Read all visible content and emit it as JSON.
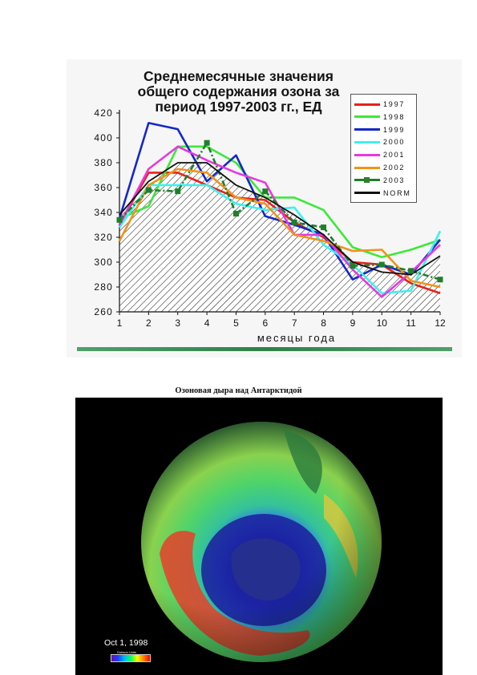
{
  "chart_data": {
    "type": "line",
    "title": "Среднемесячные значения\nобщего содержания озона за\nпериод 1997-2003 гг., ЕД",
    "xlabel": "месяцы года",
    "ylabel": "",
    "x": [
      1,
      2,
      3,
      4,
      5,
      6,
      7,
      8,
      9,
      10,
      11,
      12
    ],
    "x_ticks": [
      "1",
      "2",
      "3",
      "4",
      "5",
      "6",
      "7",
      "8",
      "9",
      "10",
      "11",
      "12"
    ],
    "y_ticks": [
      "260",
      "280",
      "300",
      "320",
      "340",
      "360",
      "380",
      "400",
      "420"
    ],
    "ylim": [
      260,
      420
    ],
    "xlim": [
      1,
      12
    ],
    "legend_position": "top-right",
    "area": {
      "series": "NORM",
      "fill": "hatched"
    },
    "series": [
      {
        "name": "1997",
        "color": "#e8211b",
        "values": [
          330,
          372,
          372,
          362,
          352,
          350,
          332,
          320,
          300,
          298,
          283,
          275
        ]
      },
      {
        "name": "1998",
        "color": "#3ee83a",
        "values": [
          335,
          345,
          393,
          393,
          380,
          352,
          352,
          342,
          312,
          304,
          310,
          318
        ]
      },
      {
        "name": "1999",
        "color": "#1428c8",
        "values": [
          335,
          412,
          407,
          365,
          386,
          337,
          330,
          322,
          286,
          298,
          290,
          318
        ]
      },
      {
        "name": "2000",
        "color": "#3ef0f0",
        "values": [
          328,
          362,
          362,
          362,
          347,
          342,
          344,
          314,
          298,
          275,
          277,
          325
        ]
      },
      {
        "name": "2001",
        "color": "#e838e0",
        "values": [
          330,
          375,
          393,
          382,
          372,
          364,
          322,
          322,
          294,
          272,
          292,
          314
        ]
      },
      {
        "name": "2002",
        "color": "#f39219",
        "values": [
          317,
          362,
          375,
          372,
          352,
          347,
          322,
          317,
          309,
          310,
          285,
          280
        ]
      },
      {
        "name": "2003",
        "color": "#1f7f2a",
        "dashed": true,
        "markers": true,
        "values": [
          334,
          358,
          357,
          396,
          339,
          357,
          332,
          328,
          297,
          298,
          293,
          286
        ]
      },
      {
        "name": "NORM",
        "color": "#111111",
        "values": [
          338,
          365,
          380,
          380,
          362,
          352,
          338,
          322,
          300,
          292,
          290,
          305
        ]
      }
    ]
  },
  "photo": {
    "caption": "Озоновая дыра над Антарктидой",
    "date_label": "Oct 1, 1998",
    "scale_label": "Dobson Units"
  }
}
